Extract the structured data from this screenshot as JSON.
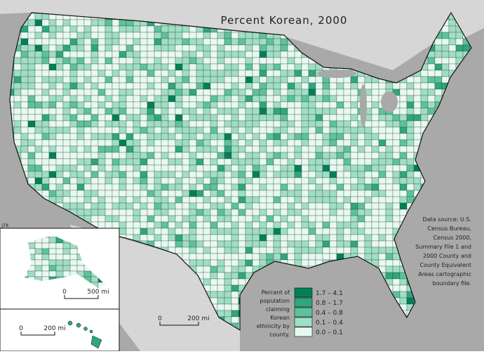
{
  "title": "Percent Korean, 2000",
  "author": "JTK",
  "legend": {
    "title_lines": [
      "Percent of",
      "population",
      "claiming",
      "Korean",
      "ethnicity by",
      "county."
    ],
    "items": [
      {
        "label": "1.7 – 4.1",
        "color": "#00805a"
      },
      {
        "label": "0.8 – 1.7",
        "color": "#2fa67c"
      },
      {
        "label": "0.4 – 0.8",
        "color": "#5cc29c"
      },
      {
        "label": "0.1 – 0.4",
        "color": "#9fdfc4"
      },
      {
        "label": "0.0 – 0.1",
        "color": "#e6faf1"
      }
    ]
  },
  "source_lines": [
    "Data source: U.S.",
    "Census Bureau,",
    "Census 2000,",
    "Summary File 1 and",
    "2000 County and",
    "County Equivalent",
    "Areas cartographic",
    "boundary file."
  ],
  "scale_bars": [
    {
      "zero": "0",
      "distance": "500 mi"
    },
    {
      "zero": "0",
      "distance": "200 mi"
    },
    {
      "zero": "0",
      "distance": "200 mi"
    }
  ]
}
